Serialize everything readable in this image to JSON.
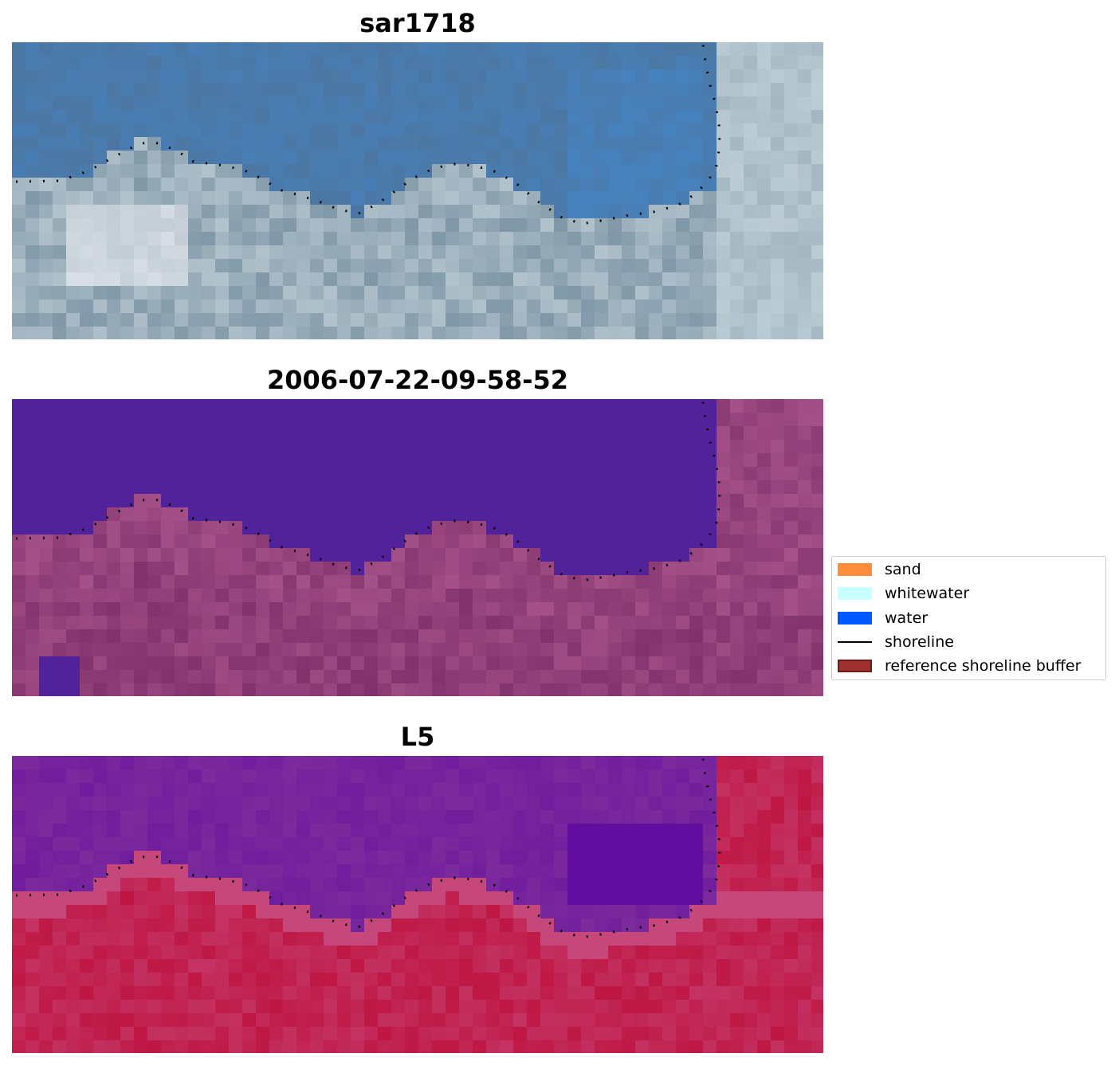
{
  "panels": [
    {
      "title": "sar1718",
      "palette": "rgb",
      "colors": {
        "water": "#4c77a3",
        "shore": "#7f97a6",
        "land": "#95a9b6",
        "accent": "#e6eef4"
      }
    },
    {
      "title": "2006-07-22-09-58-52",
      "palette": "classified",
      "colors": {
        "water": "#52229a",
        "land": "#7c2d68",
        "accent": "#b05a92"
      }
    },
    {
      "title": "L5",
      "palette": "index",
      "colors": {
        "water": "#7c2a9c",
        "land": "#bf1744",
        "accent": "#c85488"
      }
    }
  ],
  "legend": {
    "items": [
      {
        "label": "sand",
        "type": "patch",
        "color": "#ff8c3a"
      },
      {
        "label": "whitewater",
        "type": "patch",
        "color": "#c8ffff"
      },
      {
        "label": "water",
        "type": "patch",
        "color": "#0058ff"
      },
      {
        "label": "shoreline",
        "type": "line",
        "color": "#000000"
      },
      {
        "label": "reference shoreline buffer",
        "type": "patch",
        "color": "#a0302e",
        "edge": "#6b1a1a"
      }
    ]
  }
}
